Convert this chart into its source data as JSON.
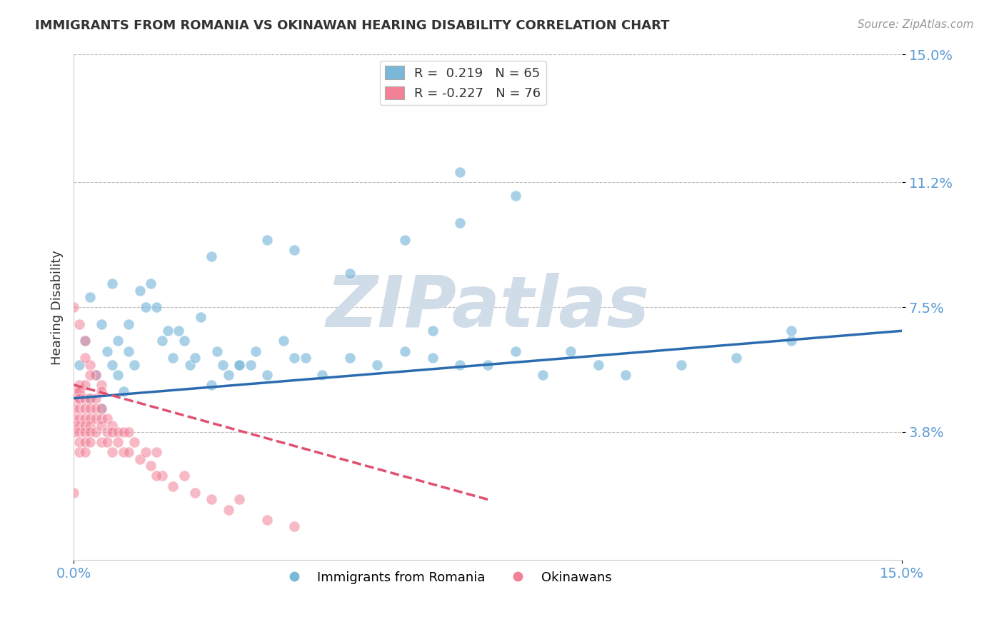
{
  "title": "IMMIGRANTS FROM ROMANIA VS OKINAWAN HEARING DISABILITY CORRELATION CHART",
  "source_text": "Source: ZipAtlas.com",
  "ylabel": "Hearing Disability",
  "legend_entry1": "R =  0.219   N = 65",
  "legend_entry2": "R = -0.227   N = 76",
  "legend_label1": "Immigrants from Romania",
  "legend_label2": "Okinawans",
  "xlim": [
    0.0,
    0.15
  ],
  "ylim": [
    0.0,
    0.15
  ],
  "xtick_labels": [
    "0.0%",
    "15.0%"
  ],
  "ytick_positions": [
    0.038,
    0.075,
    0.112,
    0.15
  ],
  "ytick_labels": [
    "3.8%",
    "7.5%",
    "11.2%",
    "15.0%"
  ],
  "color_blue": "#7ab8d9",
  "color_pink": "#f28096",
  "color_line_blue": "#2b6cb0",
  "color_line_pink": "#e05070",
  "watermark_text": "ZIPatlas",
  "watermark_color": "#d0dde8",
  "title_color": "#333333",
  "tick_label_color": "#5b9bd5",
  "background_color": "#ffffff",
  "blue_scatter_x": [
    0.001,
    0.002,
    0.003,
    0.003,
    0.004,
    0.005,
    0.005,
    0.006,
    0.007,
    0.007,
    0.008,
    0.008,
    0.009,
    0.01,
    0.01,
    0.011,
    0.012,
    0.013,
    0.014,
    0.015,
    0.016,
    0.017,
    0.018,
    0.019,
    0.02,
    0.021,
    0.022,
    0.023,
    0.025,
    0.026,
    0.027,
    0.028,
    0.03,
    0.032,
    0.033,
    0.035,
    0.038,
    0.04,
    0.042,
    0.045,
    0.05,
    0.055,
    0.06,
    0.065,
    0.07,
    0.075,
    0.08,
    0.085,
    0.09,
    0.095,
    0.1,
    0.11,
    0.12,
    0.13,
    0.025,
    0.03,
    0.035,
    0.04,
    0.05,
    0.06,
    0.07,
    0.08,
    0.065,
    0.07,
    0.13
  ],
  "blue_scatter_y": [
    0.058,
    0.065,
    0.048,
    0.078,
    0.055,
    0.07,
    0.045,
    0.062,
    0.058,
    0.082,
    0.065,
    0.055,
    0.05,
    0.07,
    0.062,
    0.058,
    0.08,
    0.075,
    0.082,
    0.075,
    0.065,
    0.068,
    0.06,
    0.068,
    0.065,
    0.058,
    0.06,
    0.072,
    0.052,
    0.062,
    0.058,
    0.055,
    0.058,
    0.058,
    0.062,
    0.055,
    0.065,
    0.06,
    0.06,
    0.055,
    0.06,
    0.058,
    0.062,
    0.06,
    0.058,
    0.058,
    0.062,
    0.055,
    0.062,
    0.058,
    0.055,
    0.058,
    0.06,
    0.065,
    0.09,
    0.058,
    0.095,
    0.092,
    0.085,
    0.095,
    0.1,
    0.108,
    0.068,
    0.115,
    0.068
  ],
  "pink_scatter_x": [
    0.0,
    0.0,
    0.0,
    0.0,
    0.0,
    0.0,
    0.001,
    0.001,
    0.001,
    0.001,
    0.001,
    0.001,
    0.001,
    0.001,
    0.001,
    0.001,
    0.001,
    0.002,
    0.002,
    0.002,
    0.002,
    0.002,
    0.002,
    0.002,
    0.002,
    0.003,
    0.003,
    0.003,
    0.003,
    0.003,
    0.003,
    0.004,
    0.004,
    0.004,
    0.004,
    0.005,
    0.005,
    0.005,
    0.005,
    0.006,
    0.006,
    0.006,
    0.007,
    0.007,
    0.007,
    0.008,
    0.008,
    0.009,
    0.009,
    0.01,
    0.01,
    0.011,
    0.012,
    0.013,
    0.014,
    0.015,
    0.016,
    0.018,
    0.02,
    0.022,
    0.025,
    0.028,
    0.03,
    0.035,
    0.04,
    0.0,
    0.001,
    0.002,
    0.003,
    0.004,
    0.005,
    0.002,
    0.003,
    0.005,
    0.015,
    0.0
  ],
  "pink_scatter_y": [
    0.05,
    0.048,
    0.045,
    0.042,
    0.04,
    0.038,
    0.052,
    0.05,
    0.048,
    0.045,
    0.042,
    0.04,
    0.038,
    0.035,
    0.032,
    0.05,
    0.048,
    0.052,
    0.048,
    0.045,
    0.042,
    0.04,
    0.038,
    0.035,
    0.032,
    0.048,
    0.045,
    0.042,
    0.04,
    0.038,
    0.035,
    0.048,
    0.045,
    0.042,
    0.038,
    0.045,
    0.042,
    0.04,
    0.035,
    0.042,
    0.038,
    0.035,
    0.04,
    0.038,
    0.032,
    0.038,
    0.035,
    0.038,
    0.032,
    0.038,
    0.032,
    0.035,
    0.03,
    0.032,
    0.028,
    0.032,
    0.025,
    0.022,
    0.025,
    0.02,
    0.018,
    0.015,
    0.018,
    0.012,
    0.01,
    0.075,
    0.07,
    0.065,
    0.058,
    0.055,
    0.052,
    0.06,
    0.055,
    0.05,
    0.025,
    0.02
  ],
  "blue_line_x": [
    0.0,
    0.15
  ],
  "blue_line_y": [
    0.048,
    0.068
  ],
  "pink_line_x": [
    0.0,
    0.075
  ],
  "pink_line_y": [
    0.052,
    0.018
  ]
}
